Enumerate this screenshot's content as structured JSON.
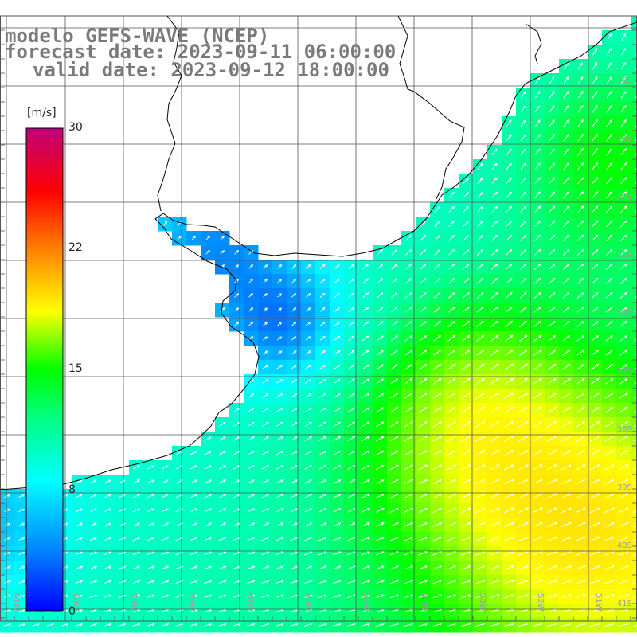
{
  "header": {
    "title": "modelo GEFS-WAVE (NCEP)",
    "forecast": "forecast date: 2023-09-11 06:00:00",
    "valid": "valid date: 2023-09-12 18:00:00"
  },
  "colorbar": {
    "unit": "[m/s]",
    "ticks": [
      "30",
      "22",
      "15",
      "8",
      "0"
    ],
    "tick_values": [
      30,
      22,
      15,
      8,
      0
    ],
    "stops": [
      "#0000ff",
      "#00b0ff",
      "#00ffff",
      "#00ff00",
      "#ffff00",
      "#ff8000",
      "#ff0000",
      "#c0007a"
    ]
  },
  "lat_labels": [
    "32S",
    "33S",
    "34S",
    "35S",
    "36S",
    "37S",
    "38S",
    "39S",
    "40S",
    "41S"
  ],
  "lon_labels": [
    "61W",
    "60W",
    "59W",
    "58W",
    "57W",
    "56W",
    "55W",
    "54W",
    "53W",
    "52W",
    "51W"
  ],
  "colors": {
    "land": "#ffffff",
    "coast": "#000000",
    "grid": "#555555",
    "arrow": "#ffffff"
  }
}
